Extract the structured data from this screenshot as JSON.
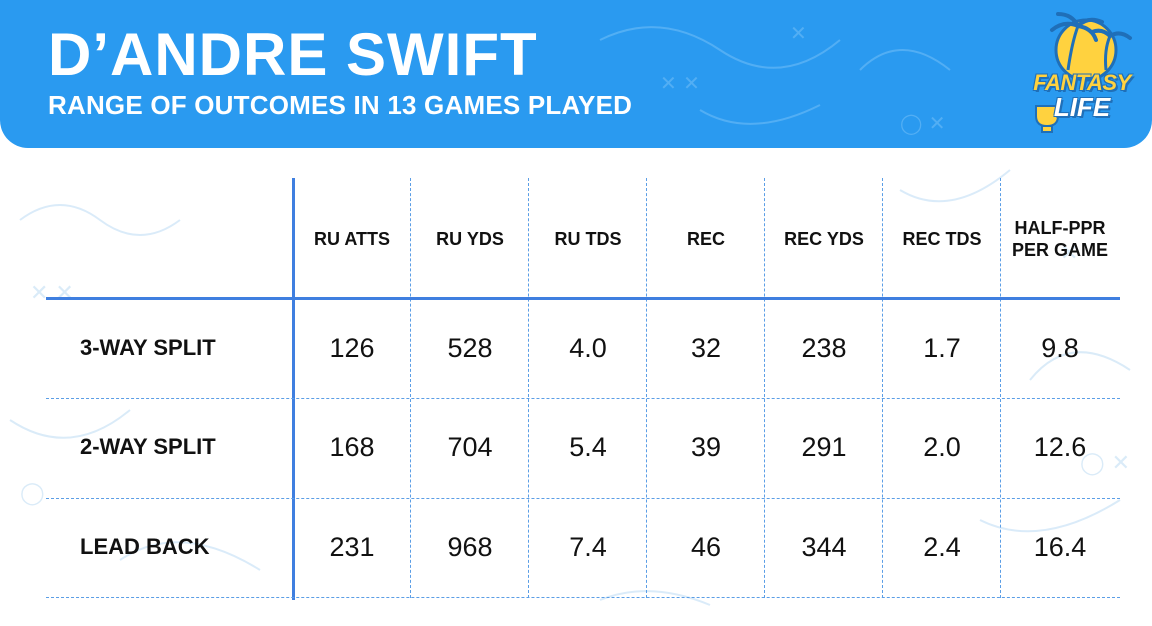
{
  "header": {
    "title": "D’ANDRE SWIFT",
    "subtitle": "RANGE OF OUTCOMES IN 13 GAMES PLAYED",
    "logo": {
      "line1": "FANTASY",
      "line2": "LIFE",
      "colors": {
        "gold": "#ffd23f",
        "blue": "#1f6fb8"
      }
    }
  },
  "colors": {
    "header_bg": "#2a9af0",
    "rule": "#3f7fe0",
    "dashed": "#5b9ee6",
    "text": "#111111"
  },
  "chart_data": {
    "type": "table",
    "columns": [
      "RU ATTS",
      "RU YDS",
      "RU TDS",
      "REC",
      "REC YDS",
      "REC TDS",
      "HALF-PPR PER GAME"
    ],
    "rows": [
      {
        "label": "3-WAY SPLIT",
        "values": [
          "126",
          "528",
          "4.0",
          "32",
          "238",
          "1.7",
          "9.8"
        ]
      },
      {
        "label": "2-WAY SPLIT",
        "values": [
          "168",
          "704",
          "5.4",
          "39",
          "291",
          "2.0",
          "12.6"
        ]
      },
      {
        "label": "LEAD BACK",
        "values": [
          "231",
          "968",
          "7.4",
          "46",
          "344",
          "2.4",
          "16.4"
        ]
      }
    ]
  }
}
